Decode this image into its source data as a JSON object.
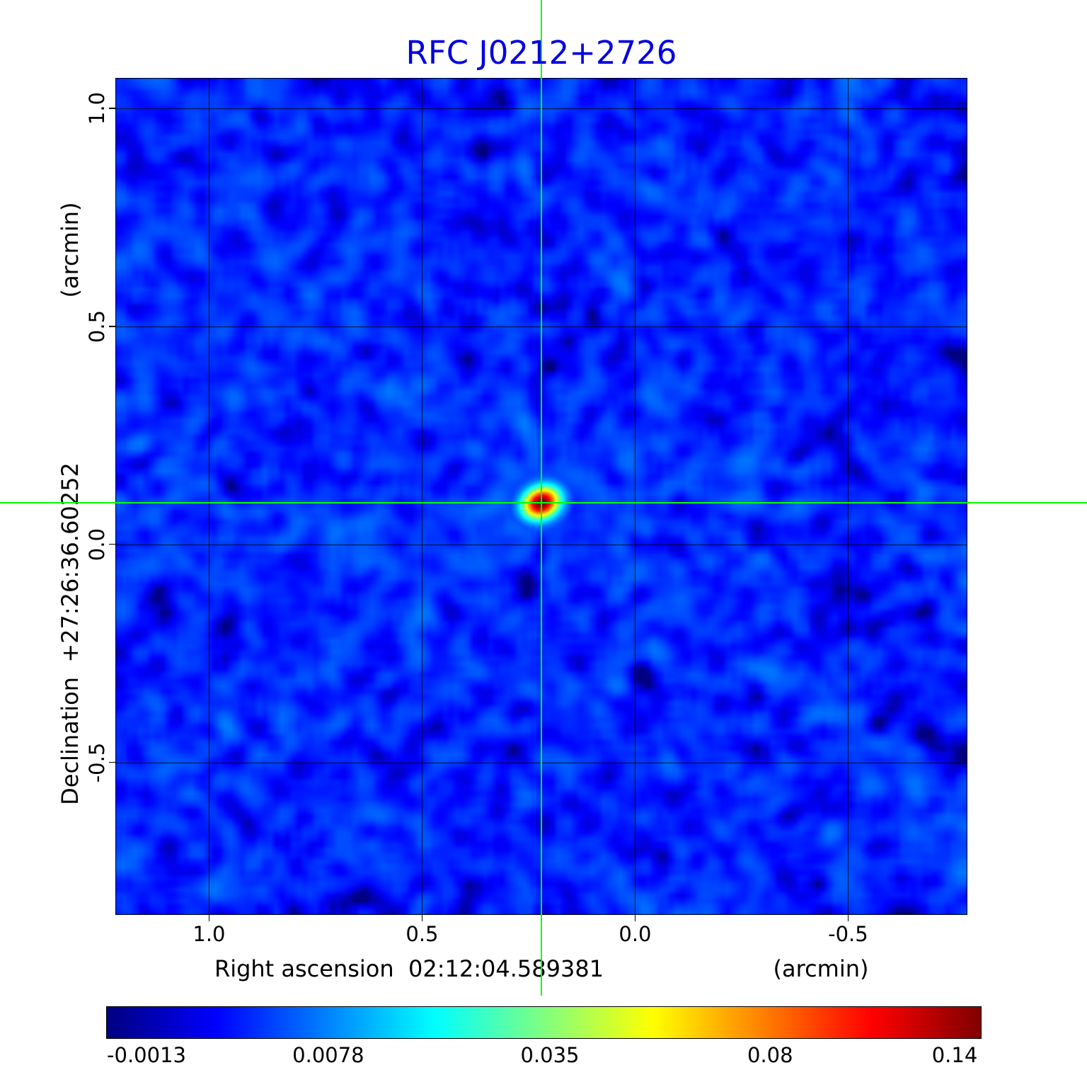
{
  "figure": {
    "title": "RFC J0212+2726",
    "title_color": "#0000e0",
    "crosshair_color": "#00ff00"
  },
  "axes": {
    "x": {
      "label": "Right ascension  02:12:04.589381",
      "unit": "(arcmin)",
      "tick_labels": [
        "1.0",
        "0.5",
        "0.0",
        "-0.5"
      ]
    },
    "y": {
      "label": "Declination  +27:26:36.60252",
      "unit": "(arcmin)",
      "tick_labels": [
        "1.0",
        "0.5",
        "0.0",
        "-0.5"
      ]
    }
  },
  "colorbar": {
    "tick_labels": [
      "-0.0013",
      "0.0078",
      "0.035",
      "0.08",
      "0.14"
    ]
  },
  "chart_data": {
    "type": "heatmap",
    "title": "RFC J0212+2726",
    "xlabel": "Right ascension 02:12:04.589381 (arcmin)",
    "ylabel": "Declination +27:26:36.60252 (arcmin)",
    "x_range": [
      1.22,
      -0.78
    ],
    "y_range": [
      -0.85,
      1.07
    ],
    "x_ticks": [
      1.0,
      0.5,
      0.0,
      -0.5
    ],
    "y_ticks": [
      1.0,
      0.5,
      0.0,
      -0.5
    ],
    "grid": true,
    "colormap": "jet",
    "scale": "sqrt",
    "vmin": -0.0013,
    "vmax": 0.14,
    "colorbar_tick_values": [
      -0.0013,
      0.0078,
      0.035,
      0.08,
      0.14
    ],
    "crosshair": {
      "x": 0.22,
      "y": 0.095
    },
    "source": {
      "x": 0.22,
      "y": 0.095,
      "peak": 0.14
    },
    "background_level": 0.0022,
    "artifact_rays_deg": [
      36,
      -35,
      -7,
      80,
      -70,
      13
    ]
  }
}
